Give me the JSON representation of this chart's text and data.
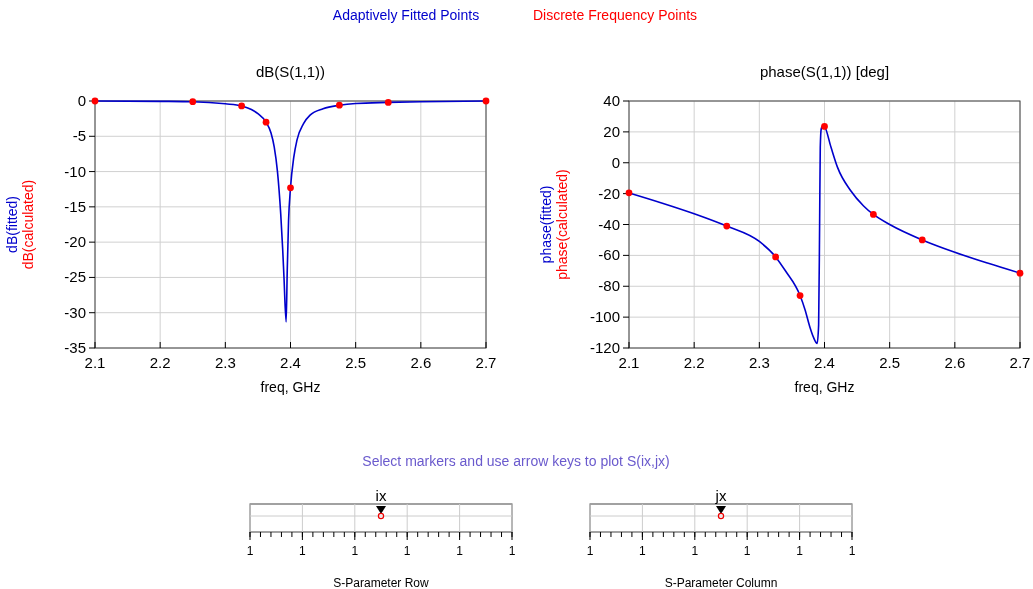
{
  "chart_data": [
    {
      "type": "line",
      "title": "dB(S(1,1))",
      "xlabel": "freq, GHz",
      "ylabel": "dB(fitted)\ndB(calculated)",
      "xlim": [
        2.1,
        2.7
      ],
      "ylim": [
        -35,
        0
      ],
      "xticks": [
        2.1,
        2.2,
        2.3,
        2.4,
        2.5,
        2.6,
        2.7
      ],
      "yticks": [
        -35,
        -30,
        -25,
        -20,
        -15,
        -10,
        -5,
        0
      ],
      "grid": true,
      "legend": "top",
      "series": [
        {
          "name": "Adaptively Fitted Points",
          "type": "line",
          "color": "#0000cc",
          "marker": "none",
          "x": [
            2.1,
            2.2,
            2.25,
            2.3,
            2.325,
            2.34,
            2.35,
            2.3625,
            2.37,
            2.375,
            2.38,
            2.385,
            2.388,
            2.39,
            2.3933,
            2.395,
            2.397,
            2.4,
            2.405,
            2.41,
            2.42,
            2.43,
            2.45,
            2.475,
            2.5,
            2.55,
            2.6,
            2.7
          ],
          "values": [
            0,
            -0.05,
            -0.1,
            -0.4,
            -0.7,
            -1.2,
            -1.8,
            -3.0,
            -4.5,
            -6.5,
            -10,
            -16,
            -21,
            -25,
            -31.3,
            -24,
            -17,
            -12.3,
            -8,
            -5.5,
            -3.2,
            -2.0,
            -1.1,
            -0.6,
            -0.35,
            -0.2,
            -0.1,
            0
          ]
        },
        {
          "name": "Discrete Frequency Points",
          "type": "scatter",
          "color": "#ff0000",
          "marker": "circle",
          "x": [
            2.1,
            2.25,
            2.325,
            2.3625,
            2.4,
            2.475,
            2.55,
            2.7
          ],
          "values": [
            0,
            -0.1,
            -0.7,
            -3.0,
            -12.3,
            -0.6,
            -0.2,
            0
          ]
        }
      ]
    },
    {
      "type": "line",
      "title": "phase(S(1,1)) [deg]",
      "xlabel": "freq, GHz",
      "ylabel": "phase(fitted)\nphase(calculated)",
      "xlim": [
        2.1,
        2.7
      ],
      "ylim": [
        -120,
        40
      ],
      "xticks": [
        2.1,
        2.2,
        2.3,
        2.4,
        2.5,
        2.6,
        2.7
      ],
      "yticks": [
        -120,
        -100,
        -80,
        -60,
        -40,
        -20,
        0,
        20,
        40
      ],
      "grid": true,
      "series": [
        {
          "type": "line",
          "color": "#0000cc",
          "marker": "none",
          "x": [
            2.1,
            2.15,
            2.2,
            2.25,
            2.3,
            2.325,
            2.34,
            2.3625,
            2.37,
            2.378,
            2.383,
            2.3887,
            2.391,
            2.3925,
            2.3935,
            2.395,
            2.3975,
            2.4,
            2.41,
            2.42,
            2.44,
            2.46,
            2.475,
            2.5,
            2.55,
            2.6,
            2.65,
            2.7
          ],
          "values": [
            -19.5,
            -26,
            -33,
            -41,
            -51,
            -61,
            -70,
            -86,
            -95,
            -107,
            -113,
            -117,
            -105,
            -40,
            10,
            22,
            24,
            23.5,
            10,
            -3,
            -18,
            -28,
            -33.5,
            -40,
            -50,
            -58,
            -65,
            -71.5
          ]
        },
        {
          "type": "scatter",
          "color": "#ff0000",
          "marker": "circle",
          "x": [
            2.1,
            2.25,
            2.325,
            2.3625,
            2.4,
            2.475,
            2.55,
            2.7
          ],
          "values": [
            -19.5,
            -41,
            -61,
            -86,
            23.5,
            -33.5,
            -50,
            -71.5
          ]
        }
      ]
    },
    {
      "type": "other",
      "title": "Select markers and use arrow keys to plot S(ix,jx)",
      "xlabel": "S-Parameter Row",
      "categories": [
        "1",
        "1",
        "1",
        "1",
        "1",
        "1"
      ],
      "annotations": [
        "ix"
      ]
    },
    {
      "type": "other",
      "xlabel": "S-Parameter Column",
      "categories": [
        "1",
        "1",
        "1",
        "1",
        "1",
        "1"
      ],
      "annotations": [
        "jx"
      ]
    }
  ]
}
